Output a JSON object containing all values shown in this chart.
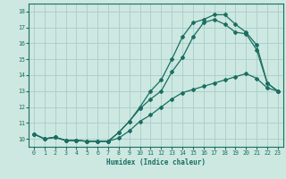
{
  "xlabel": "Humidex (Indice chaleur)",
  "bg_color": "#cce8e0",
  "grid_color": "#aacccc",
  "line_color": "#1a6e62",
  "xlim": [
    -0.5,
    23.5
  ],
  "ylim": [
    9.5,
    18.5
  ],
  "xticks": [
    0,
    1,
    2,
    3,
    4,
    5,
    6,
    7,
    8,
    9,
    10,
    11,
    12,
    13,
    14,
    15,
    16,
    17,
    18,
    19,
    20,
    21,
    22,
    23
  ],
  "yticks": [
    10,
    11,
    12,
    13,
    14,
    15,
    16,
    17,
    18
  ],
  "line1_x": [
    0,
    1,
    2,
    3,
    4,
    5,
    6,
    7,
    8,
    9,
    10,
    11,
    12,
    13,
    14,
    15,
    16,
    17,
    18,
    19,
    20,
    21,
    22,
    23
  ],
  "line1_y": [
    10.3,
    10.0,
    10.1,
    9.9,
    9.9,
    9.85,
    9.85,
    9.85,
    10.05,
    10.5,
    11.1,
    11.5,
    12.0,
    12.5,
    12.9,
    13.1,
    13.3,
    13.5,
    13.7,
    13.9,
    14.1,
    13.8,
    13.2,
    13.0
  ],
  "line2_x": [
    0,
    1,
    2,
    3,
    4,
    5,
    6,
    7,
    8,
    9,
    10,
    11,
    12,
    13,
    14,
    15,
    16,
    17,
    18,
    19,
    20,
    21,
    22,
    23
  ],
  "line2_y": [
    10.3,
    10.0,
    10.1,
    9.9,
    9.9,
    9.85,
    9.85,
    9.85,
    10.4,
    11.1,
    11.9,
    12.5,
    13.0,
    14.2,
    15.1,
    16.4,
    17.3,
    17.5,
    17.2,
    16.7,
    16.6,
    15.6,
    13.5,
    13.0
  ],
  "line3_x": [
    0,
    1,
    2,
    3,
    4,
    5,
    6,
    7,
    8,
    9,
    10,
    11,
    12,
    13,
    14,
    15,
    16,
    17,
    18,
    19,
    20,
    21,
    22,
    23
  ],
  "line3_y": [
    10.3,
    10.0,
    10.1,
    9.9,
    9.9,
    9.85,
    9.85,
    9.85,
    10.4,
    11.1,
    12.0,
    13.0,
    13.7,
    15.0,
    16.4,
    17.3,
    17.5,
    17.8,
    17.8,
    17.2,
    16.7,
    15.9,
    13.5,
    13.0
  ]
}
